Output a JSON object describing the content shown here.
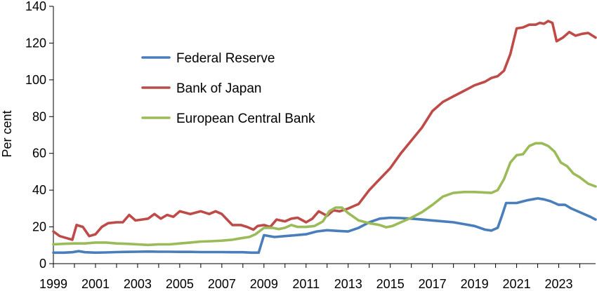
{
  "chart_data": {
    "type": "line",
    "title": "",
    "xlabel": "",
    "ylabel": "Per cent",
    "xlim": [
      1999,
      2024.75
    ],
    "ylim": [
      0,
      140
    ],
    "yticks": [
      0,
      20,
      40,
      60,
      80,
      100,
      120,
      140
    ],
    "xticks": [
      1999,
      2001,
      2003,
      2005,
      2007,
      2009,
      2011,
      2013,
      2015,
      2017,
      2019,
      2021,
      2023
    ],
    "grid": false,
    "legend_position": "top-left",
    "series": [
      {
        "name": "Federal Reserve",
        "color": "#4a7ebb",
        "x": [
          1999,
          1999.5,
          1999.9,
          2000.2,
          2000.5,
          2001,
          2001.5,
          2002,
          2002.5,
          2003,
          2003.5,
          2004,
          2004.5,
          2005,
          2005.5,
          2006,
          2006.5,
          2007,
          2007.5,
          2008,
          2008.4,
          2008.75,
          2009,
          2009.5,
          2010,
          2010.5,
          2011,
          2011.5,
          2012,
          2012.5,
          2013,
          2013.5,
          2014,
          2014.5,
          2015,
          2015.5,
          2016,
          2016.5,
          2017,
          2017.5,
          2018,
          2018.5,
          2019,
          2019.5,
          2019.8,
          2020.1,
          2020.3,
          2020.5,
          2021,
          2021.5,
          2022,
          2022.3,
          2022.6,
          2023,
          2023.3,
          2023.6,
          2024,
          2024.5,
          2024.75
        ],
        "values": [
          6.0,
          6.0,
          6.2,
          6.8,
          6.2,
          6.0,
          6.1,
          6.3,
          6.4,
          6.5,
          6.6,
          6.5,
          6.5,
          6.4,
          6.4,
          6.3,
          6.3,
          6.3,
          6.2,
          6.2,
          6.0,
          6.0,
          15.5,
          14.5,
          15.0,
          15.5,
          16.0,
          17.5,
          18.2,
          17.8,
          17.5,
          19.5,
          22.5,
          24.5,
          25.0,
          24.8,
          24.5,
          24.0,
          23.5,
          23.0,
          22.5,
          21.5,
          20.5,
          18.5,
          18.0,
          19.5,
          26.0,
          33.0,
          33.0,
          34.5,
          35.5,
          35.0,
          34.0,
          32.0,
          32.0,
          30.0,
          28.0,
          25.5,
          24.0
        ]
      },
      {
        "name": "Bank of Japan",
        "color": "#be4b48",
        "x": [
          1999,
          1999.3,
          1999.6,
          1999.9,
          2000.1,
          2000.4,
          2000.7,
          2001,
          2001.3,
          2001.6,
          2002,
          2002.3,
          2002.6,
          2002.9,
          2003.2,
          2003.5,
          2003.8,
          2004.1,
          2004.4,
          2004.7,
          2005,
          2005.5,
          2006,
          2006.4,
          2006.7,
          2007,
          2007.5,
          2007.9,
          2008.2,
          2008.5,
          2008.7,
          2009,
          2009.3,
          2009.6,
          2010,
          2010.3,
          2010.6,
          2011,
          2011.3,
          2011.6,
          2012,
          2012.3,
          2012.6,
          2013,
          2013.5,
          2014,
          2014.5,
          2015,
          2015.5,
          2016,
          2016.5,
          2017,
          2017.5,
          2018,
          2018.5,
          2019,
          2019.5,
          2019.8,
          2020.1,
          2020.4,
          2020.7,
          2021,
          2021.3,
          2021.6,
          2021.9,
          2022.1,
          2022.3,
          2022.5,
          2022.7,
          2022.9,
          2023.2,
          2023.5,
          2023.8,
          2024.1,
          2024.4,
          2024.75
        ],
        "values": [
          17.5,
          15.0,
          14.0,
          13.0,
          21.0,
          20.0,
          15.0,
          16.0,
          20.0,
          22.0,
          22.5,
          22.5,
          26.5,
          23.5,
          24.0,
          24.5,
          27.0,
          24.5,
          26.5,
          25.5,
          28.5,
          27.0,
          28.5,
          27.0,
          28.5,
          27.0,
          21.0,
          21.0,
          20.0,
          18.5,
          20.5,
          21.0,
          20.0,
          24.0,
          23.0,
          24.5,
          25.0,
          22.5,
          24.5,
          28.5,
          26.0,
          29.0,
          28.5,
          30.0,
          32.5,
          40.0,
          46.0,
          52.0,
          60.0,
          67.0,
          74.0,
          83.0,
          88.0,
          91.0,
          94.0,
          97.0,
          99.0,
          101.0,
          102.0,
          105.0,
          114.0,
          128.0,
          128.5,
          130.0,
          130.0,
          131.0,
          130.5,
          132.0,
          131.0,
          121.0,
          123.0,
          126.0,
          124.0,
          125.0,
          125.5,
          123.0
        ]
      },
      {
        "name": "European Central Bank",
        "color": "#9bbb59",
        "x": [
          1999,
          1999.5,
          2000,
          2000.5,
          2001,
          2001.5,
          2002,
          2002.5,
          2003,
          2003.5,
          2004,
          2004.5,
          2005,
          2005.5,
          2006,
          2006.5,
          2007,
          2007.5,
          2008,
          2008.3,
          2008.6,
          2009,
          2009.4,
          2009.7,
          2010,
          2010.3,
          2010.6,
          2011,
          2011.4,
          2011.8,
          2012.1,
          2012.4,
          2012.7,
          2013,
          2013.5,
          2014,
          2014.5,
          2014.8,
          2015.1,
          2015.5,
          2016,
          2016.5,
          2017,
          2017.5,
          2018,
          2018.5,
          2019,
          2019.5,
          2019.8,
          2020.1,
          2020.4,
          2020.7,
          2021,
          2021.3,
          2021.6,
          2021.9,
          2022.2,
          2022.5,
          2022.8,
          2023.1,
          2023.4,
          2023.7,
          2024,
          2024.4,
          2024.75
        ],
        "values": [
          10.5,
          10.8,
          11.0,
          11.0,
          11.5,
          11.5,
          11.0,
          10.8,
          10.5,
          10.2,
          10.5,
          10.5,
          11.0,
          11.5,
          12.0,
          12.2,
          12.5,
          13.0,
          14.0,
          14.5,
          16.0,
          19.5,
          19.5,
          18.8,
          19.5,
          21.0,
          20.0,
          20.0,
          20.5,
          23.0,
          28.5,
          30.5,
          30.5,
          27.5,
          23.5,
          22.0,
          21.0,
          19.8,
          20.5,
          22.5,
          25.0,
          28.0,
          32.0,
          36.5,
          38.5,
          39.0,
          39.0,
          38.7,
          38.5,
          40.0,
          46.0,
          55.0,
          59.0,
          59.5,
          64.0,
          65.5,
          65.5,
          64.0,
          61.0,
          55.0,
          53.0,
          49.0,
          47.0,
          43.5,
          42.0
        ]
      }
    ]
  }
}
